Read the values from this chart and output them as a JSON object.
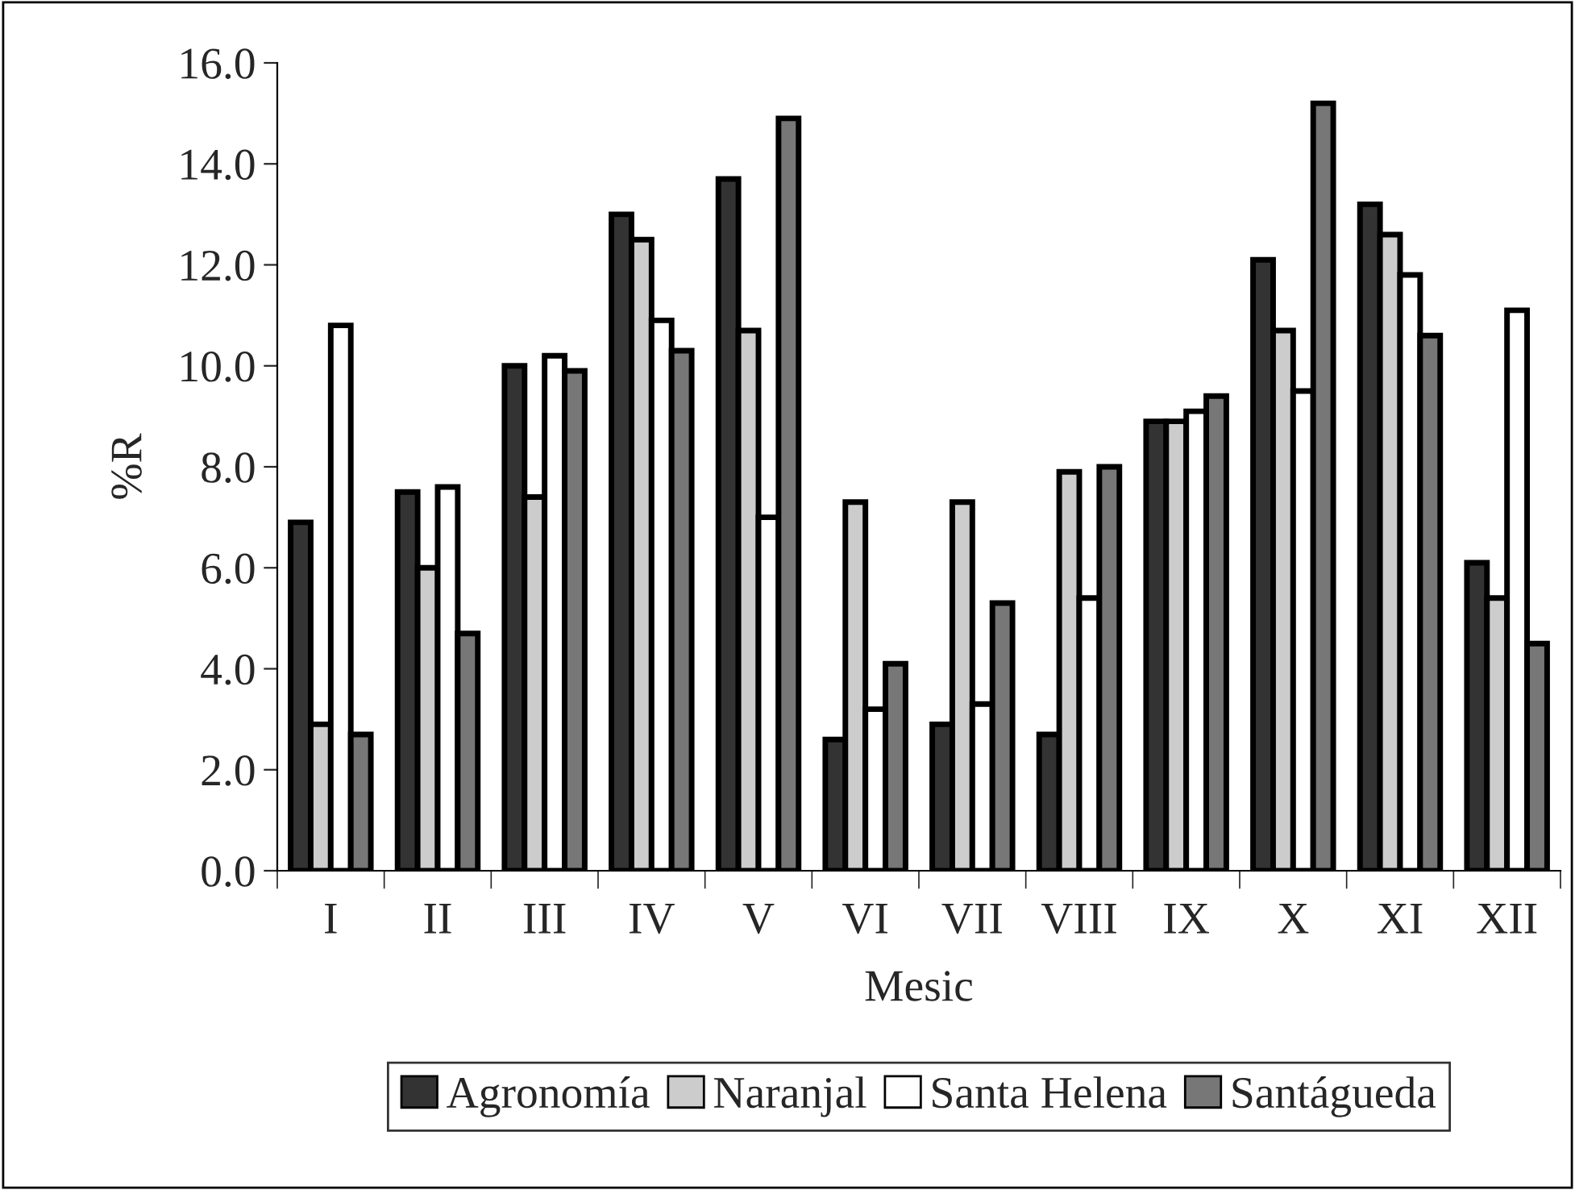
{
  "chart_data": {
    "type": "bar",
    "xlabel": "Mesic",
    "ylabel": "%R",
    "categories": [
      "I",
      "II",
      "III",
      "IV",
      "V",
      "VI",
      "VII",
      "VIII",
      "IX",
      "X",
      "XI",
      "XII"
    ],
    "series": [
      {
        "name": "Agronomía",
        "color": "#333333",
        "values": [
          6.9,
          7.5,
          10.0,
          13.0,
          13.7,
          2.6,
          2.9,
          2.7,
          8.9,
          12.1,
          13.2,
          6.1
        ]
      },
      {
        "name": "Naranjal",
        "color": "#cccccc",
        "values": [
          2.9,
          6.0,
          7.4,
          12.5,
          10.7,
          7.3,
          7.3,
          7.9,
          8.9,
          10.7,
          12.6,
          5.4
        ]
      },
      {
        "name": "Santa Helena",
        "color": "#ffffff",
        "values": [
          10.8,
          7.6,
          10.2,
          10.9,
          7.0,
          3.2,
          3.3,
          5.4,
          9.1,
          9.5,
          11.8,
          11.1
        ]
      },
      {
        "name": "Santágueda",
        "color": "#777777",
        "values": [
          2.7,
          4.7,
          9.9,
          10.3,
          14.9,
          4.1,
          5.3,
          8.0,
          9.4,
          15.2,
          10.6,
          4.5
        ]
      }
    ],
    "ylim": [
      0,
      16
    ],
    "yticks": [
      {
        "value": 0,
        "label": "0.0"
      },
      {
        "value": 2,
        "label": "2.0"
      },
      {
        "value": 4,
        "label": "4.0"
      },
      {
        "value": 6,
        "label": "6.0"
      },
      {
        "value": 8,
        "label": "8.0"
      },
      {
        "value": 10,
        "label": "10.0"
      },
      {
        "value": 12,
        "label": "12.0"
      },
      {
        "value": 14,
        "label": "14.0"
      },
      {
        "value": 16,
        "label": "16.0"
      }
    ],
    "grid": false,
    "legend": "bottom"
  }
}
